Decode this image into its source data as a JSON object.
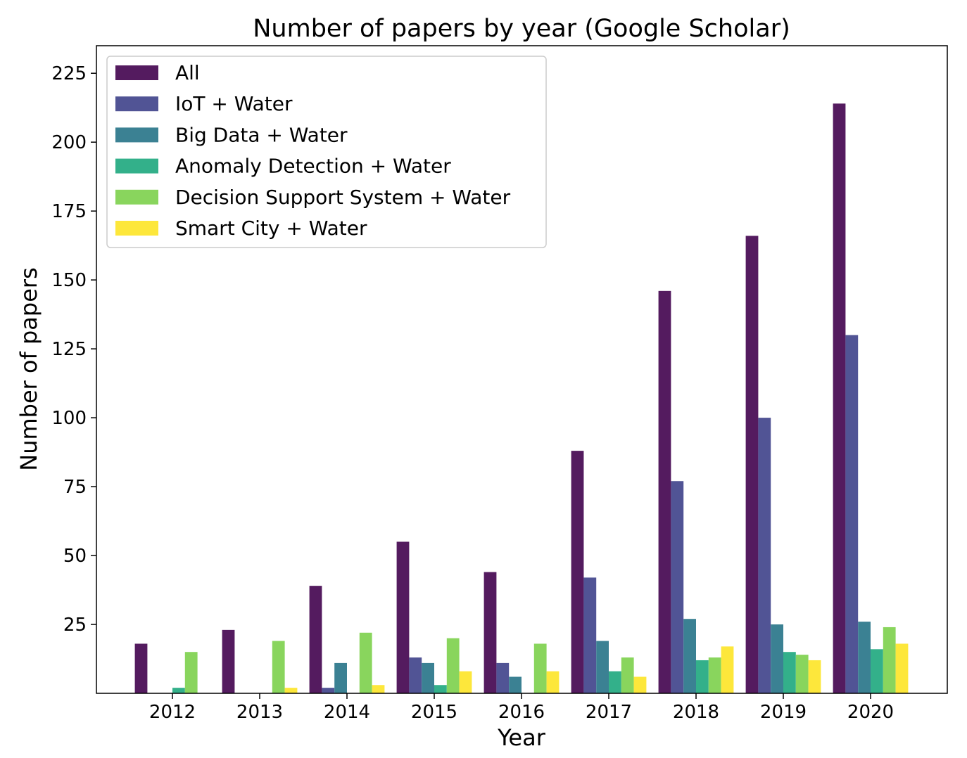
{
  "chart_data": {
    "type": "bar",
    "title": "Number of papers by year (Google Scholar)",
    "xlabel": "Year",
    "ylabel": "Number of papers",
    "categories": [
      "2012",
      "2013",
      "2014",
      "2015",
      "2016",
      "2017",
      "2018",
      "2019",
      "2020"
    ],
    "ylim": [
      0,
      235
    ],
    "yticks": [
      25,
      50,
      75,
      100,
      125,
      150,
      175,
      200,
      225
    ],
    "grid": false,
    "legend_position": "top-left",
    "series": [
      {
        "name": "All",
        "color": "#541b5f",
        "values": [
          18,
          23,
          39,
          55,
          44,
          88,
          146,
          166,
          214
        ]
      },
      {
        "name": "IoT + Water",
        "color": "#515495",
        "values": [
          0,
          0,
          2,
          13,
          11,
          42,
          77,
          100,
          130
        ]
      },
      {
        "name": "Big Data + Water",
        "color": "#3b8193",
        "values": [
          0,
          0,
          11,
          11,
          6,
          19,
          27,
          25,
          26
        ]
      },
      {
        "name": "Anomaly Detection + Water",
        "color": "#33b08a",
        "values": [
          2,
          0,
          0,
          3,
          0,
          8,
          12,
          15,
          16
        ]
      },
      {
        "name": "Decision Support System + Water",
        "color": "#89d55d",
        "values": [
          15,
          19,
          22,
          20,
          18,
          13,
          13,
          14,
          24
        ]
      },
      {
        "name": "Smart City + Water",
        "color": "#fde73b",
        "values": [
          0,
          2,
          3,
          8,
          8,
          6,
          17,
          12,
          18
        ]
      }
    ]
  }
}
